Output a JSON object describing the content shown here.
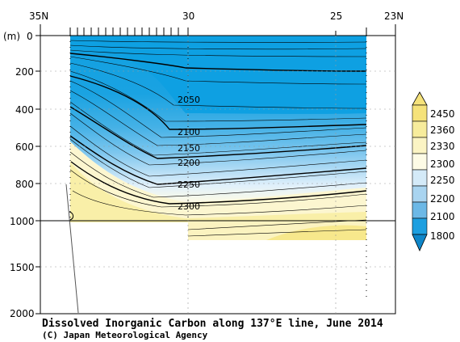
{
  "chart_data": {
    "type": "contour",
    "title": "Dissolved Inorganic Carbon along 137°E line, June 2014",
    "credit": "(C) Japan Meteorological Agency",
    "x_axis": {
      "ticks": [
        "35N",
        "30",
        "25",
        "23N"
      ],
      "range": [
        35,
        23
      ]
    },
    "y_axis": {
      "unit": "(m)",
      "ticks": [
        "0",
        "200",
        "400",
        "600",
        "800",
        "1000",
        "1500",
        "2000"
      ],
      "range": [
        0,
        2000
      ],
      "break_at": 1000
    },
    "contour_labels": [
      "2050",
      "2100",
      "2150",
      "2200",
      "2250",
      "2300"
    ],
    "colorbar": {
      "labels": [
        "2450",
        "2360",
        "2330",
        "2300",
        "2250",
        "2200",
        "2100",
        "1800"
      ],
      "colors": [
        "#f5e27a",
        "#f7ec9c",
        "#fbf4c4",
        "#fdfbe6",
        "#d4eaf8",
        "#a9d4f0",
        "#6cb8e6",
        "#1d9fe0",
        "#0f86c9"
      ]
    }
  }
}
